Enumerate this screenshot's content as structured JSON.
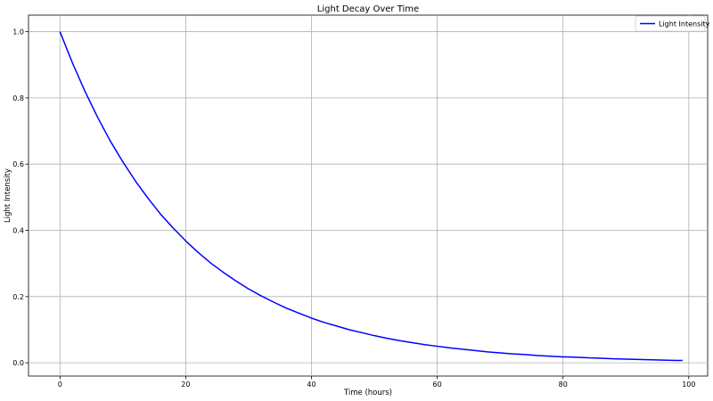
{
  "chart_data": {
    "type": "line",
    "title": "Light Decay Over Time",
    "xlabel": "Time (hours)",
    "ylabel": "Light Intensity",
    "xlim": [
      -5,
      103
    ],
    "ylim": [
      -0.04,
      1.05
    ],
    "xticks": [
      0,
      20,
      40,
      60,
      80,
      100
    ],
    "yticks": [
      0.0,
      0.2,
      0.4,
      0.6,
      0.8,
      1.0
    ],
    "xtick_labels": [
      "0",
      "20",
      "40",
      "60",
      "80",
      "100"
    ],
    "ytick_labels": [
      "0.0",
      "0.2",
      "0.4",
      "0.6",
      "0.8",
      "1.0"
    ],
    "grid": true,
    "legend_position": "top-right",
    "series": [
      {
        "name": "Light Intensity",
        "color": "#0000ff",
        "x": [
          0,
          2,
          4,
          6,
          8,
          10,
          12,
          14,
          16,
          18,
          20,
          22,
          24,
          26,
          28,
          30,
          32,
          34,
          36,
          38,
          40,
          42,
          44,
          46,
          48,
          50,
          52,
          54,
          56,
          58,
          60,
          62,
          64,
          66,
          68,
          70,
          72,
          74,
          76,
          78,
          80,
          82,
          84,
          86,
          88,
          90,
          92,
          94,
          96,
          98,
          99
        ],
        "y": [
          1.0,
          0.905,
          0.819,
          0.741,
          0.67,
          0.607,
          0.549,
          0.497,
          0.449,
          0.407,
          0.368,
          0.333,
          0.301,
          0.273,
          0.247,
          0.223,
          0.202,
          0.183,
          0.165,
          0.15,
          0.135,
          0.122,
          0.111,
          0.1,
          0.091,
          0.082,
          0.074,
          0.067,
          0.061,
          0.055,
          0.05,
          0.045,
          0.041,
          0.037,
          0.033,
          0.03,
          0.027,
          0.025,
          0.022,
          0.02,
          0.018,
          0.017,
          0.015,
          0.014,
          0.012,
          0.011,
          0.01,
          0.009,
          0.008,
          0.007,
          0.007
        ]
      }
    ]
  }
}
